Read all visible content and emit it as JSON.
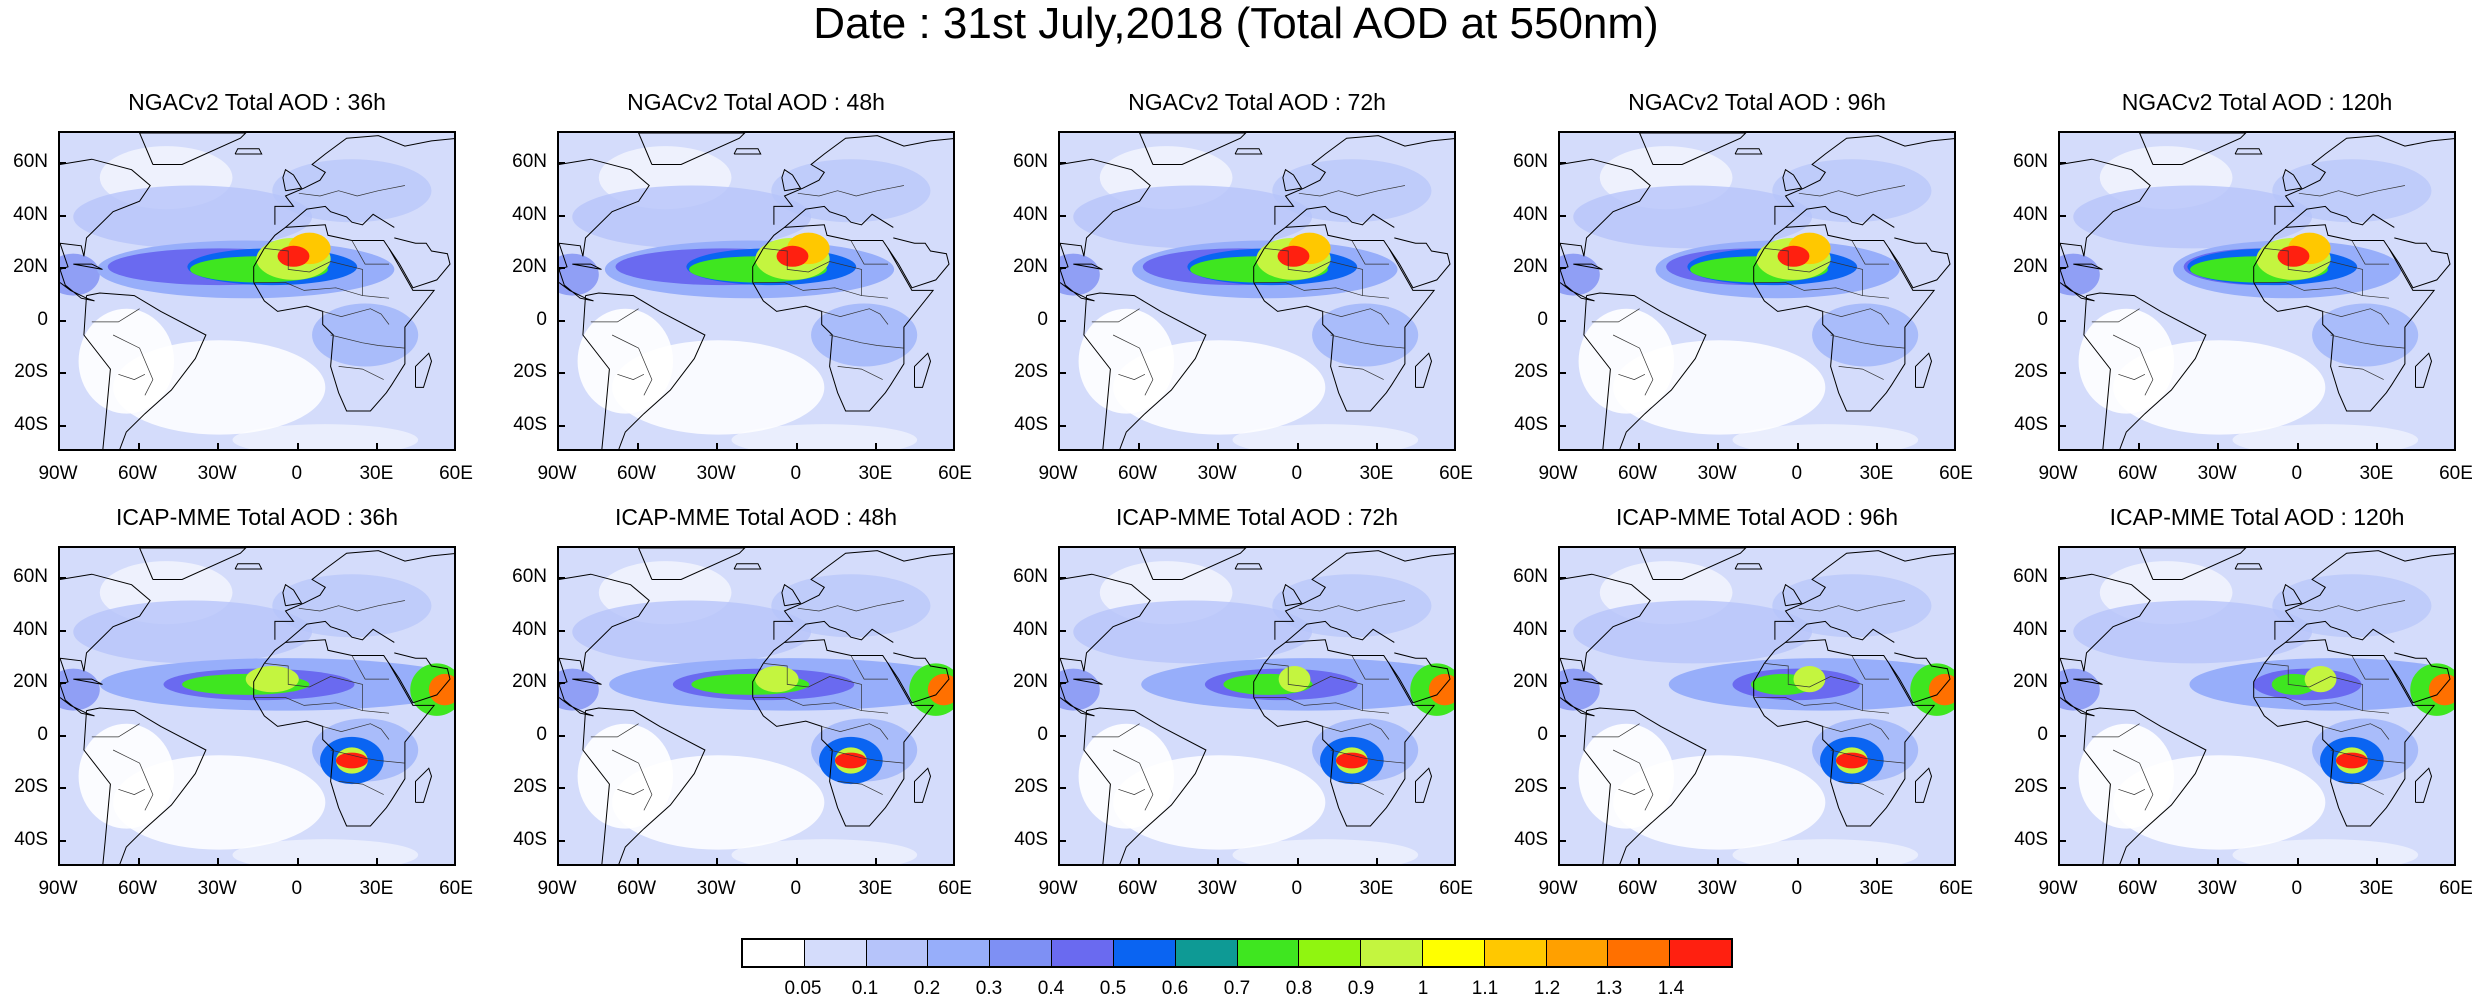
{
  "title": "Date : 31st July,2018 (Total AOD at 550nm)",
  "lat_labels": [
    "60N",
    "40N",
    "20N",
    "0",
    "20S",
    "40S"
  ],
  "lon_labels": [
    "90W",
    "60W",
    "30W",
    "0",
    "30E",
    "60E"
  ],
  "panels": [
    {
      "title": "NGACv2 Total AOD : 36h",
      "model": "NGACv2",
      "lead": "36h"
    },
    {
      "title": "NGACv2 Total AOD : 48h",
      "model": "NGACv2",
      "lead": "48h"
    },
    {
      "title": "NGACv2 Total AOD : 72h",
      "model": "NGACv2",
      "lead": "72h"
    },
    {
      "title": "NGACv2 Total AOD : 96h",
      "model": "NGACv2",
      "lead": "96h"
    },
    {
      "title": "NGACv2 Total AOD : 120h",
      "model": "NGACv2",
      "lead": "120h"
    },
    {
      "title": "ICAP-MME Total AOD : 36h",
      "model": "ICAP-MME",
      "lead": "36h"
    },
    {
      "title": "ICAP-MME Total AOD : 48h",
      "model": "ICAP-MME",
      "lead": "48h"
    },
    {
      "title": "ICAP-MME Total AOD : 72h",
      "model": "ICAP-MME",
      "lead": "72h"
    },
    {
      "title": "ICAP-MME Total AOD : 96h",
      "model": "ICAP-MME",
      "lead": "96h"
    },
    {
      "title": "ICAP-MME Total AOD : 120h",
      "model": "ICAP-MME",
      "lead": "120h"
    }
  ],
  "colorbar": {
    "labels": [
      "0.05",
      "0.1",
      "0.2",
      "0.3",
      "0.4",
      "0.5",
      "0.6",
      "0.7",
      "0.8",
      "0.9",
      "1",
      "1.1",
      "1.2",
      "1.3",
      "1.4"
    ],
    "colors": [
      "#ffffff",
      "#d4dcfb",
      "#b6c4fa",
      "#97aefa",
      "#7e90f4",
      "#6a6af0",
      "#0a64f2",
      "#0e9a95",
      "#3fe620",
      "#90f510",
      "#c4f53f",
      "#ffff00",
      "#ffc800",
      "#ffa000",
      "#ff7000",
      "#ff2010"
    ]
  }
}
